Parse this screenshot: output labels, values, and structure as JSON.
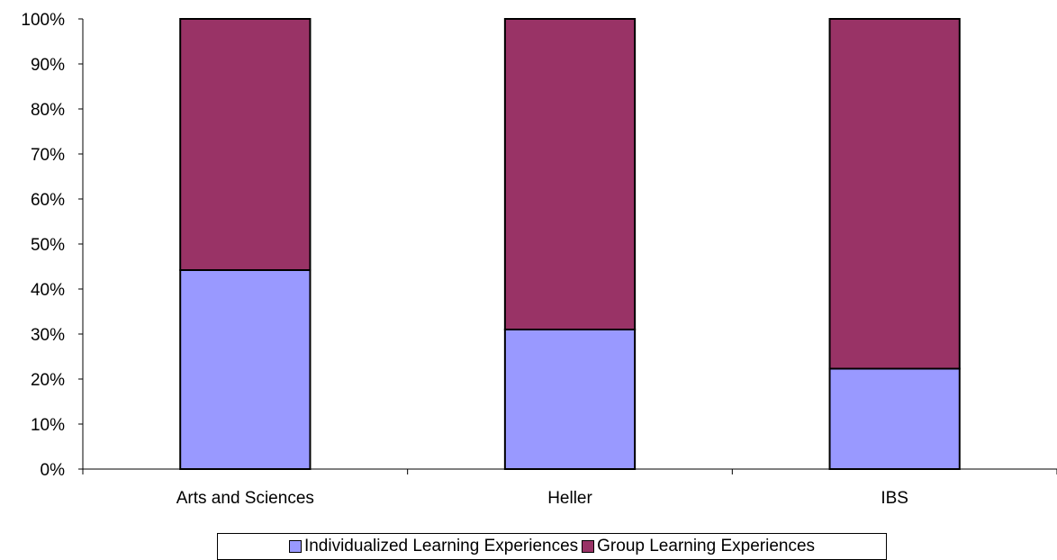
{
  "chart_data": {
    "type": "bar",
    "stacked": true,
    "percent_stacked": true,
    "categories": [
      "Arts and Sciences",
      "Heller",
      "IBS"
    ],
    "series": [
      {
        "name": "Individualized Learning Experiences",
        "color": "#9999FF",
        "values": [
          44.2,
          31.0,
          22.3
        ]
      },
      {
        "name": "Group Learning Experiences",
        "color": "#993366",
        "values": [
          55.8,
          69.0,
          77.7
        ]
      }
    ],
    "ylim": [
      0,
      100
    ],
    "yticks": [
      "0%",
      "10%",
      "20%",
      "30%",
      "40%",
      "50%",
      "60%",
      "70%",
      "80%",
      "90%",
      "100%"
    ],
    "title": "",
    "xlabel": "",
    "ylabel": "",
    "grid": false,
    "legend_position": "bottom"
  }
}
